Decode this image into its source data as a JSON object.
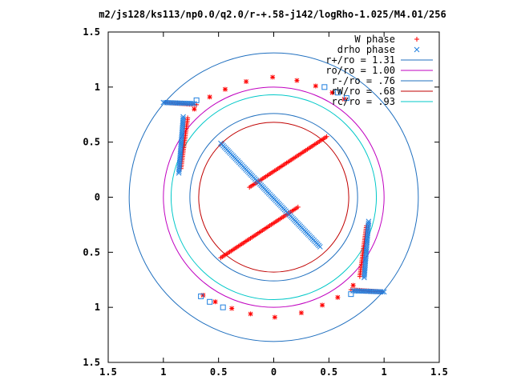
{
  "chart_data": {
    "type": "scatter",
    "title": "m2/js128/ks113/np0.0/q2.0/r-+.58-j142/logRho-1.025/M4.01/256",
    "xlabel": "",
    "ylabel": "",
    "xlim": [
      -1.5,
      1.5
    ],
    "ylim": [
      -1.5,
      1.5
    ],
    "grid": false,
    "legend_position": "top-right",
    "x_tick_labels": [
      "1.5",
      "1",
      "0.5",
      "0",
      "0.5",
      "1",
      "1.5"
    ],
    "y_tick_labels": [
      "1.5",
      "1",
      "0.5",
      "0",
      "0.5",
      "1",
      "1.5"
    ],
    "tick_values": [
      -1.5,
      -1,
      -0.5,
      0,
      0.5,
      1,
      1.5
    ],
    "series": [
      {
        "name": "W phase",
        "marker": "plus",
        "color": "#ff0000",
        "segments": [
          [
            [
              -0.22,
              0.09
            ],
            [
              0.48,
              0.55
            ]
          ],
          [
            [
              0.22,
              -0.09
            ],
            [
              -0.48,
              -0.55
            ]
          ],
          [
            [
              -0.84,
              0.26
            ],
            [
              -0.78,
              0.72
            ]
          ],
          [
            [
              0.84,
              -0.26
            ],
            [
              0.78,
              -0.72
            ]
          ],
          [
            [
              -0.98,
              0.86
            ],
            [
              -0.7,
              0.84
            ]
          ],
          [
            [
              0.98,
              -0.86
            ],
            [
              0.7,
              -0.84
            ]
          ]
        ],
        "arc_points": [
          [
            -0.72,
            0.8
          ],
          [
            -0.58,
            0.91
          ],
          [
            -0.44,
            0.98
          ],
          [
            -0.25,
            1.05
          ],
          [
            -0.01,
            1.09
          ],
          [
            0.21,
            1.06
          ],
          [
            0.38,
            1.01
          ],
          [
            0.53,
            0.95
          ],
          [
            0.64,
            0.89
          ],
          [
            0.72,
            -0.8
          ],
          [
            0.58,
            -0.91
          ],
          [
            0.44,
            -0.98
          ],
          [
            0.25,
            -1.05
          ],
          [
            0.01,
            -1.09
          ],
          [
            -0.21,
            -1.06
          ],
          [
            -0.38,
            -1.01
          ],
          [
            -0.53,
            -0.95
          ],
          [
            -0.64,
            -0.89
          ]
        ]
      },
      {
        "name": "drho phase",
        "marker": "x",
        "color": "#1f7fdf",
        "segments": [
          [
            [
              -0.48,
              0.49
            ],
            [
              0.42,
              -0.45
            ]
          ],
          [
            [
              -0.86,
              0.22
            ],
            [
              -0.82,
              0.73
            ]
          ],
          [
            [
              0.86,
              -0.22
            ],
            [
              0.82,
              -0.73
            ]
          ],
          [
            [
              -1.0,
              0.86
            ],
            [
              -0.72,
              0.85
            ]
          ],
          [
            [
              1.0,
              -0.86
            ],
            [
              0.72,
              -0.85
            ]
          ]
        ],
        "arc_points": [
          [
            -0.7,
            0.88
          ],
          [
            0.46,
            1.0
          ],
          [
            0.58,
            0.95
          ],
          [
            0.66,
            0.9
          ],
          [
            0.7,
            -0.88
          ],
          [
            -0.46,
            -1.0
          ],
          [
            -0.58,
            -0.95
          ],
          [
            -0.66,
            -0.9
          ]
        ]
      },
      {
        "name": "r+/ro = 1.31",
        "type": "circle",
        "radius": 1.31,
        "color": "#1f6fbf"
      },
      {
        "name": "ro/ro = 1.00",
        "type": "circle",
        "radius": 1.0,
        "color": "#c000c0"
      },
      {
        "name": "r-/ro = .76",
        "type": "circle",
        "radius": 0.76,
        "color": "#1f6fbf"
      },
      {
        "name": "rW/ro = .68",
        "type": "circle",
        "radius": 0.68,
        "color": "#c00000"
      },
      {
        "name": "rc/ro = .93",
        "type": "circle",
        "radius": 0.93,
        "color": "#00c8c8"
      }
    ]
  }
}
